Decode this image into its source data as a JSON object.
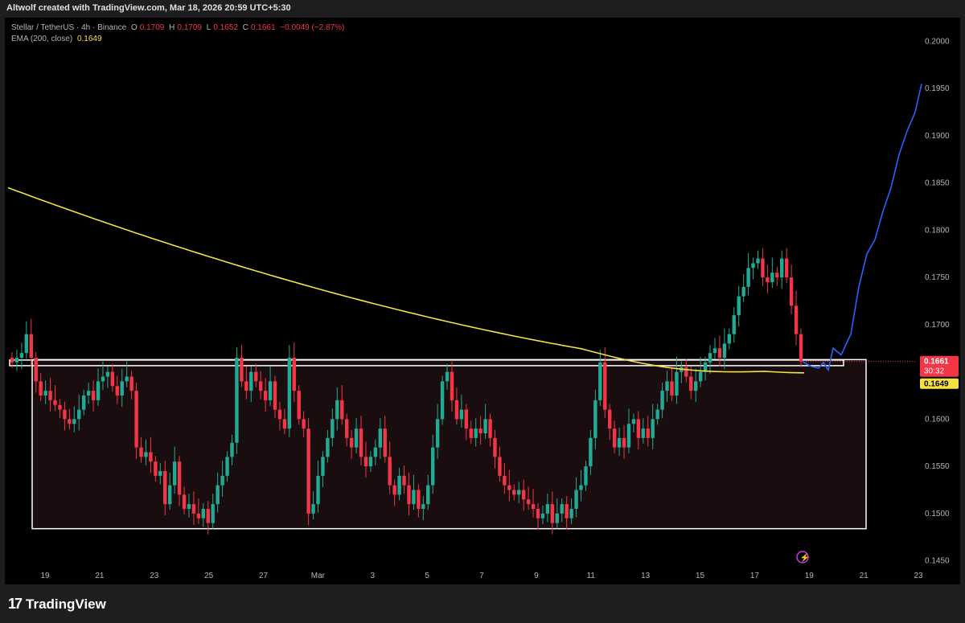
{
  "header": {
    "credit": "Altwolf created with TradingView.com, Mar 18, 2026 20:59 UTC+5:30"
  },
  "legend": {
    "symbol": "Stellar / TetherUS · 4h · Binance",
    "o_label": "O",
    "o_value": "0.1709",
    "h_label": "H",
    "h_value": "0.1709",
    "l_label": "L",
    "l_value": "0.1652",
    "c_label": "C",
    "c_value": "0.1661",
    "change": "−0.0049 (−2.87%)",
    "ema_label": "EMA (200, close)",
    "ema_value": "0.1649"
  },
  "price_axis": {
    "ticks": [
      "0.2000",
      "0.1950",
      "0.1900",
      "0.1850",
      "0.1800",
      "0.1750",
      "0.1700",
      "0.1650",
      "0.1600",
      "0.1550",
      "0.1500",
      "0.1450"
    ],
    "last_price": "0.1661",
    "countdown": "30:32",
    "ema_price": "0.1649"
  },
  "time_axis": {
    "labels": [
      "19",
      "21",
      "23",
      "25",
      "27",
      "Mar",
      "3",
      "5",
      "7",
      "9",
      "11",
      "13",
      "15",
      "17",
      "19",
      "21",
      "23"
    ]
  },
  "footer": {
    "brand": "TradingView",
    "logo": "17"
  },
  "colors": {
    "up": "#22ab94",
    "down": "#f23645",
    "ema": "#f5e242",
    "projection": "#2962ff",
    "box": "#ffffff",
    "background": "#000000"
  },
  "chart_data": {
    "type": "candlestick",
    "symbol": "XLMUSDT",
    "interval": "4h",
    "ylim": [
      0.1425,
      0.2025
    ],
    "candles_close": [
      0.166,
      0.1665,
      0.167,
      0.169,
      0.1665,
      0.164,
      0.1625,
      0.163,
      0.162,
      0.1615,
      0.161,
      0.16,
      0.1595,
      0.16,
      0.161,
      0.1625,
      0.163,
      0.162,
      0.164,
      0.1645,
      0.165,
      0.1635,
      0.1625,
      0.164,
      0.1645,
      0.163,
      0.157,
      0.156,
      0.1565,
      0.1555,
      0.154,
      0.1545,
      0.151,
      0.153,
      0.1555,
      0.152,
      0.1505,
      0.151,
      0.15,
      0.1495,
      0.1505,
      0.149,
      0.151,
      0.153,
      0.154,
      0.156,
      0.1575,
      0.1665,
      0.164,
      0.163,
      0.165,
      0.164,
      0.163,
      0.162,
      0.164,
      0.161,
      0.16,
      0.159,
      0.1665,
      0.163,
      0.16,
      0.159,
      0.15,
      0.151,
      0.154,
      0.156,
      0.158,
      0.16,
      0.162,
      0.16,
      0.158,
      0.157,
      0.159,
      0.156,
      0.155,
      0.156,
      0.157,
      0.159,
      0.156,
      0.153,
      0.152,
      0.154,
      0.153,
      0.151,
      0.1525,
      0.1505,
      0.151,
      0.153,
      0.157,
      0.16,
      0.164,
      0.165,
      0.162,
      0.16,
      0.161,
      0.159,
      0.158,
      0.159,
      0.1585,
      0.16,
      0.158,
      0.156,
      0.154,
      0.153,
      0.1525,
      0.152,
      0.1525,
      0.1515,
      0.151,
      0.1505,
      0.1495,
      0.15,
      0.151,
      0.149,
      0.15,
      0.151,
      0.1495,
      0.1505,
      0.1525,
      0.153,
      0.155,
      0.158,
      0.162,
      0.166,
      0.161,
      0.159,
      0.157,
      0.158,
      0.157,
      0.1595,
      0.16,
      0.158,
      0.159,
      0.158,
      0.16,
      0.161,
      0.163,
      0.164,
      0.1625,
      0.165,
      0.1655,
      0.1645,
      0.163,
      0.164,
      0.165,
      0.166,
      0.167,
      0.1675,
      0.1665,
      0.168,
      0.169,
      0.171,
      0.173,
      0.174,
      0.176,
      0.1765,
      0.177,
      0.175,
      0.1745,
      0.1755,
      0.175,
      0.177,
      0.175,
      0.172,
      0.169,
      0.1661
    ],
    "ema200": {
      "start": 0.1845,
      "end": 0.1649
    },
    "support_zone": [
      0.1656,
      0.166
    ],
    "range_box": [
      0.1484,
      0.1663
    ],
    "projection_end": 0.1955
  }
}
